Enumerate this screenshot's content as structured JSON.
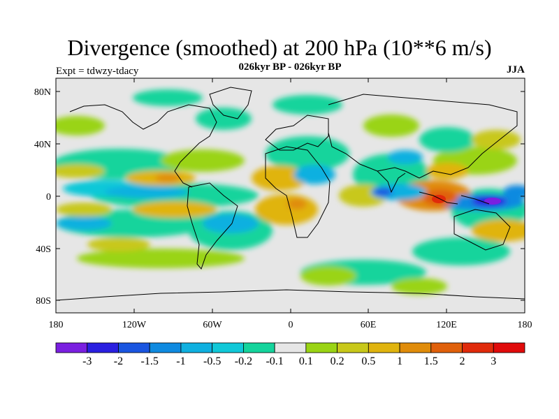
{
  "title": "Divergence (smoothed) at 200 hPa (10**6 m/s)",
  "subtitle": "026kyr BP - 026kyr BP",
  "experiment": "Expt = tdwzy-tdacy",
  "season": "JJA",
  "map": {
    "lat_ticks": [
      "80N",
      "40N",
      "0",
      "40S",
      "80S"
    ],
    "lon_ticks": [
      "180",
      "120W",
      "60W",
      "0",
      "60E",
      "120E",
      "180"
    ],
    "background": "#e6e6e6"
  },
  "colorbar": {
    "colors": [
      "#7a1fe0",
      "#2a1fe0",
      "#1a55e0",
      "#0f8ae0",
      "#0fb0e0",
      "#10c8d8",
      "#14d49c",
      "#e6e6e6",
      "#9ad414",
      "#c8c81a",
      "#e0b40f",
      "#e08c0a",
      "#e0600a",
      "#e02a0a",
      "#e00a0a"
    ],
    "labels": [
      "-3",
      "-2",
      "-1.5",
      "-1",
      "-0.5",
      "-0.2",
      "-0.1",
      "0.1",
      "0.2",
      "0.5",
      "1",
      "1.5",
      "2",
      "3"
    ]
  }
}
